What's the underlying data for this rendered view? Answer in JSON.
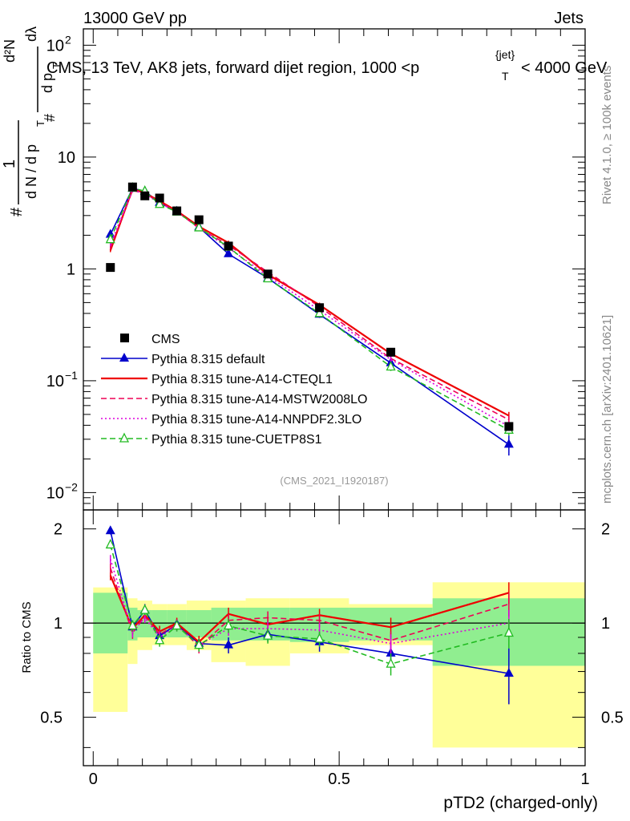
{
  "header": {
    "left": "13000 GeV pp",
    "right": "Jets",
    "title": "CMS, 13 TeV, AK8 jets, forward dijet region, 1000 <p",
    "title_sup": "{jet}",
    "title_sub": "T",
    "title_tail": "< 4000 GeV",
    "side_top": "Rivet 4.1.0, ≥ 100k events",
    "side_bottom": "mcplots.cern.ch [arXiv:2401.10621]",
    "analysis": "(CMS_2021_I1920187)"
  },
  "labels": {
    "ratio_ylabel": "Ratio to CMS",
    "xlabel": "pTD2 (charged-only)",
    "yaxis_parts": [
      "#",
      "1",
      "d N / d p",
      "T",
      "#",
      "d p",
      "T",
      "d²N",
      "dλ"
    ]
  },
  "colors": {
    "cms": "#000000",
    "default": "#0000cc",
    "cteql1": "#ee0000",
    "mstw": "#ee0055",
    "nnpdf": "#dd00dd",
    "cuetp8s1": "#22bb22",
    "band_inner": "#90ee90",
    "band_outer": "#ffff99"
  },
  "chart_data": {
    "type": "line",
    "x": [
      0.035,
      0.08,
      0.105,
      0.135,
      0.17,
      0.215,
      0.275,
      0.355,
      0.46,
      0.605,
      0.845
    ],
    "bin_edges": [
      0.0,
      0.07,
      0.09,
      0.12,
      0.15,
      0.19,
      0.24,
      0.31,
      0.4,
      0.52,
      0.69,
      1.0
    ],
    "xlim": [
      -0.02,
      1.0
    ],
    "xticks": [
      0,
      0.5,
      1
    ],
    "xtick_labels": [
      "0",
      "0.5",
      "1"
    ],
    "top_ylim": [
      0.007,
      140
    ],
    "top_yticks": [
      0.01,
      0.1,
      1,
      10,
      100
    ],
    "top_ytick_labels": [
      {
        "base": "10",
        "exp": "−2"
      },
      {
        "base": "10",
        "exp": "−1"
      },
      {
        "base": "1",
        "exp": ""
      },
      {
        "base": "10",
        "exp": ""
      },
      {
        "base": "10",
        "exp": "2"
      }
    ],
    "ratio_ylim": [
      0.35,
      2.3
    ],
    "ratio_yticks": [
      0.5,
      1,
      2
    ],
    "ratio_ytick_labels": [
      "0.5",
      "1",
      "2"
    ],
    "band_inner_ratio": [
      [
        0.8,
        1.25
      ],
      [
        0.88,
        1.12
      ],
      [
        0.9,
        1.1
      ],
      [
        0.9,
        1.1
      ],
      [
        0.9,
        1.1
      ],
      [
        0.9,
        1.1
      ],
      [
        0.88,
        1.12
      ],
      [
        0.88,
        1.12
      ],
      [
        0.87,
        1.12
      ],
      [
        0.88,
        1.12
      ],
      [
        0.73,
        1.2
      ]
    ],
    "band_outer_ratio": [
      [
        0.52,
        1.3
      ],
      [
        0.74,
        1.2
      ],
      [
        0.82,
        1.18
      ],
      [
        0.85,
        1.15
      ],
      [
        0.85,
        1.15
      ],
      [
        0.82,
        1.18
      ],
      [
        0.75,
        1.18
      ],
      [
        0.73,
        1.2
      ],
      [
        0.8,
        1.2
      ],
      [
        0.85,
        1.15
      ],
      [
        0.4,
        1.35
      ]
    ],
    "cms_values": [
      1.03,
      5.4,
      4.5,
      4.3,
      3.3,
      2.75,
      1.6,
      0.9,
      0.45,
      0.18,
      0.039
    ],
    "series": [
      {
        "name": "Pythia 8.315 default",
        "key": "default",
        "style": "solid",
        "marker": "triangle",
        "ratio": [
          1.97,
          0.97,
          1.1,
          0.91,
          0.99,
          0.86,
          0.85,
          0.92,
          0.87,
          0.8,
          0.69
        ],
        "ratio_err": [
          0.05,
          0.05,
          0.05,
          0.04,
          0.04,
          0.04,
          0.05,
          0.05,
          0.06,
          0.07,
          0.14
        ]
      },
      {
        "name": "Pythia 8.315 tune-A14-CTEQL1",
        "key": "cteql1",
        "style": "solid",
        "marker": "none",
        "ratio": [
          1.42,
          0.96,
          1.06,
          0.94,
          1.0,
          0.87,
          1.07,
          0.99,
          1.06,
          0.97,
          1.25
        ],
        "ratio_err": [
          0.05,
          0.04,
          0.04,
          0.04,
          0.04,
          0.04,
          0.05,
          0.05,
          0.05,
          0.07,
          0.1
        ]
      },
      {
        "name": "Pythia 8.315 tune-A14-MSTW2008LO",
        "key": "mstw",
        "style": "dashed",
        "marker": "none",
        "ratio": [
          1.5,
          0.93,
          1.05,
          0.92,
          0.99,
          0.84,
          1.02,
          1.04,
          1.02,
          0.88,
          1.15
        ],
        "ratio_err": [
          0.05,
          0.04,
          0.04,
          0.04,
          0.04,
          0.04,
          0.05,
          0.05,
          0.05,
          0.06,
          0.1
        ]
      },
      {
        "name": "Pythia 8.315 tune-A14-NNPDF2.3LO",
        "key": "nnpdf",
        "style": "dotted",
        "marker": "none",
        "ratio": [
          1.6,
          0.94,
          1.04,
          0.9,
          0.98,
          0.85,
          0.96,
          0.96,
          0.95,
          0.86,
          1.0
        ],
        "ratio_err": [
          0.05,
          0.04,
          0.04,
          0.04,
          0.04,
          0.04,
          0.05,
          0.05,
          0.05,
          0.06,
          0.1
        ]
      },
      {
        "name": "Pythia 8.315 tune-CUETP8S1",
        "key": "cuetp8s1",
        "style": "dashed",
        "marker": "open-triangle",
        "ratio": [
          1.78,
          0.98,
          1.1,
          0.88,
          0.98,
          0.85,
          0.98,
          0.91,
          0.89,
          0.74,
          0.93
        ],
        "ratio_err": [
          0.05,
          0.04,
          0.04,
          0.04,
          0.04,
          0.04,
          0.05,
          0.05,
          0.05,
          0.06,
          0.1
        ]
      }
    ],
    "legend_cms": "CMS"
  }
}
